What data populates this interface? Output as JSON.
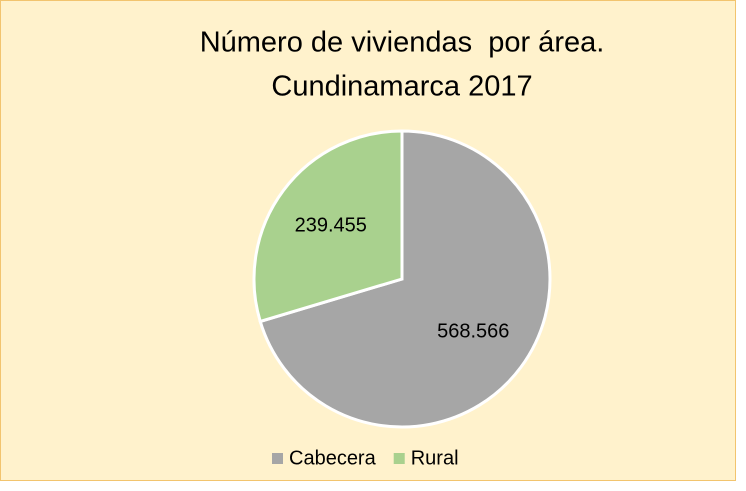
{
  "chart_data": {
    "type": "pie",
    "title": [
      "Número de viviendas  por área.",
      "Cundinamarca 2017"
    ],
    "categories": [
      "Cabecera",
      "Rural"
    ],
    "values": [
      568566,
      239455
    ],
    "value_labels": [
      "568.566",
      "239.455"
    ],
    "colors": [
      "#a6a6a6",
      "#a9d18e"
    ],
    "legend": "bottom"
  }
}
